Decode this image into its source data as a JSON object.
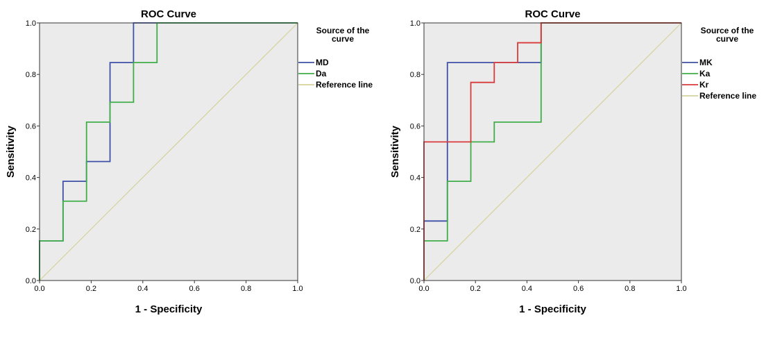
{
  "chart_data": [
    {
      "type": "line",
      "title": "ROC Curve",
      "xlabel": "1 - Specificity",
      "ylabel": "Sensitivity",
      "xlim": [
        0,
        1
      ],
      "ylim": [
        0,
        1
      ],
      "xticks": [
        "0.0",
        "0.2",
        "0.4",
        "0.6",
        "0.8",
        "1.0"
      ],
      "yticks": [
        "0.0",
        "0.2",
        "0.4",
        "0.6",
        "0.8",
        "1.0"
      ],
      "grid": false,
      "legend_title": [
        "Source of the",
        "curve"
      ],
      "legend_placement": "right",
      "series": [
        {
          "name": "MD",
          "color": "#3f51a6",
          "points": [
            [
              0,
              0
            ],
            [
              0,
              0.154
            ],
            [
              0.091,
              0.154
            ],
            [
              0.091,
              0.385
            ],
            [
              0.182,
              0.385
            ],
            [
              0.182,
              0.462
            ],
            [
              0.273,
              0.462
            ],
            [
              0.273,
              0.846
            ],
            [
              0.364,
              0.846
            ],
            [
              0.364,
              1
            ],
            [
              1,
              1
            ]
          ]
        },
        {
          "name": "Da",
          "color": "#3fae49",
          "points": [
            [
              0,
              0
            ],
            [
              0,
              0.154
            ],
            [
              0.091,
              0.154
            ],
            [
              0.091,
              0.308
            ],
            [
              0.182,
              0.308
            ],
            [
              0.182,
              0.615
            ],
            [
              0.273,
              0.615
            ],
            [
              0.273,
              0.692
            ],
            [
              0.364,
              0.692
            ],
            [
              0.364,
              0.846
            ],
            [
              0.455,
              0.846
            ],
            [
              0.455,
              1
            ],
            [
              1,
              1
            ]
          ]
        },
        {
          "name": "Reference line",
          "color": "#d4d29c",
          "points": [
            [
              0,
              0
            ],
            [
              1,
              1
            ]
          ]
        }
      ]
    },
    {
      "type": "line",
      "title": "ROC Curve",
      "xlabel": "1 - Specificity",
      "ylabel": "Sensitivity",
      "xlim": [
        0,
        1
      ],
      "ylim": [
        0,
        1
      ],
      "xticks": [
        "0.0",
        "0.2",
        "0.4",
        "0.6",
        "0.8",
        "1.0"
      ],
      "yticks": [
        "0.0",
        "0.2",
        "0.4",
        "0.6",
        "0.8",
        "1.0"
      ],
      "grid": false,
      "legend_title": [
        "Source of the",
        "curve"
      ],
      "legend_placement": "right",
      "series": [
        {
          "name": "MK",
          "color": "#3f51a6",
          "points": [
            [
              0,
              0
            ],
            [
              0,
              0.231
            ],
            [
              0.091,
              0.231
            ],
            [
              0.091,
              0.846
            ],
            [
              0.455,
              0.846
            ],
            [
              0.455,
              1
            ],
            [
              1,
              1
            ]
          ]
        },
        {
          "name": "Ka",
          "color": "#3fae49",
          "points": [
            [
              0,
              0
            ],
            [
              0,
              0.154
            ],
            [
              0.091,
              0.154
            ],
            [
              0.091,
              0.385
            ],
            [
              0.182,
              0.385
            ],
            [
              0.182,
              0.538
            ],
            [
              0.273,
              0.538
            ],
            [
              0.273,
              0.615
            ],
            [
              0.455,
              0.615
            ],
            [
              0.455,
              1
            ],
            [
              1,
              1
            ]
          ]
        },
        {
          "name": "Kr",
          "color": "#d83a3a",
          "points": [
            [
              0,
              0
            ],
            [
              0,
              0.538
            ],
            [
              0.182,
              0.538
            ],
            [
              0.182,
              0.769
            ],
            [
              0.273,
              0.769
            ],
            [
              0.273,
              0.846
            ],
            [
              0.364,
              0.846
            ],
            [
              0.364,
              0.923
            ],
            [
              0.455,
              0.923
            ],
            [
              0.455,
              1
            ],
            [
              1,
              1
            ]
          ]
        },
        {
          "name": "Reference line",
          "color": "#d4d29c",
          "points": [
            [
              0,
              0
            ],
            [
              1,
              1
            ]
          ]
        }
      ]
    }
  ]
}
